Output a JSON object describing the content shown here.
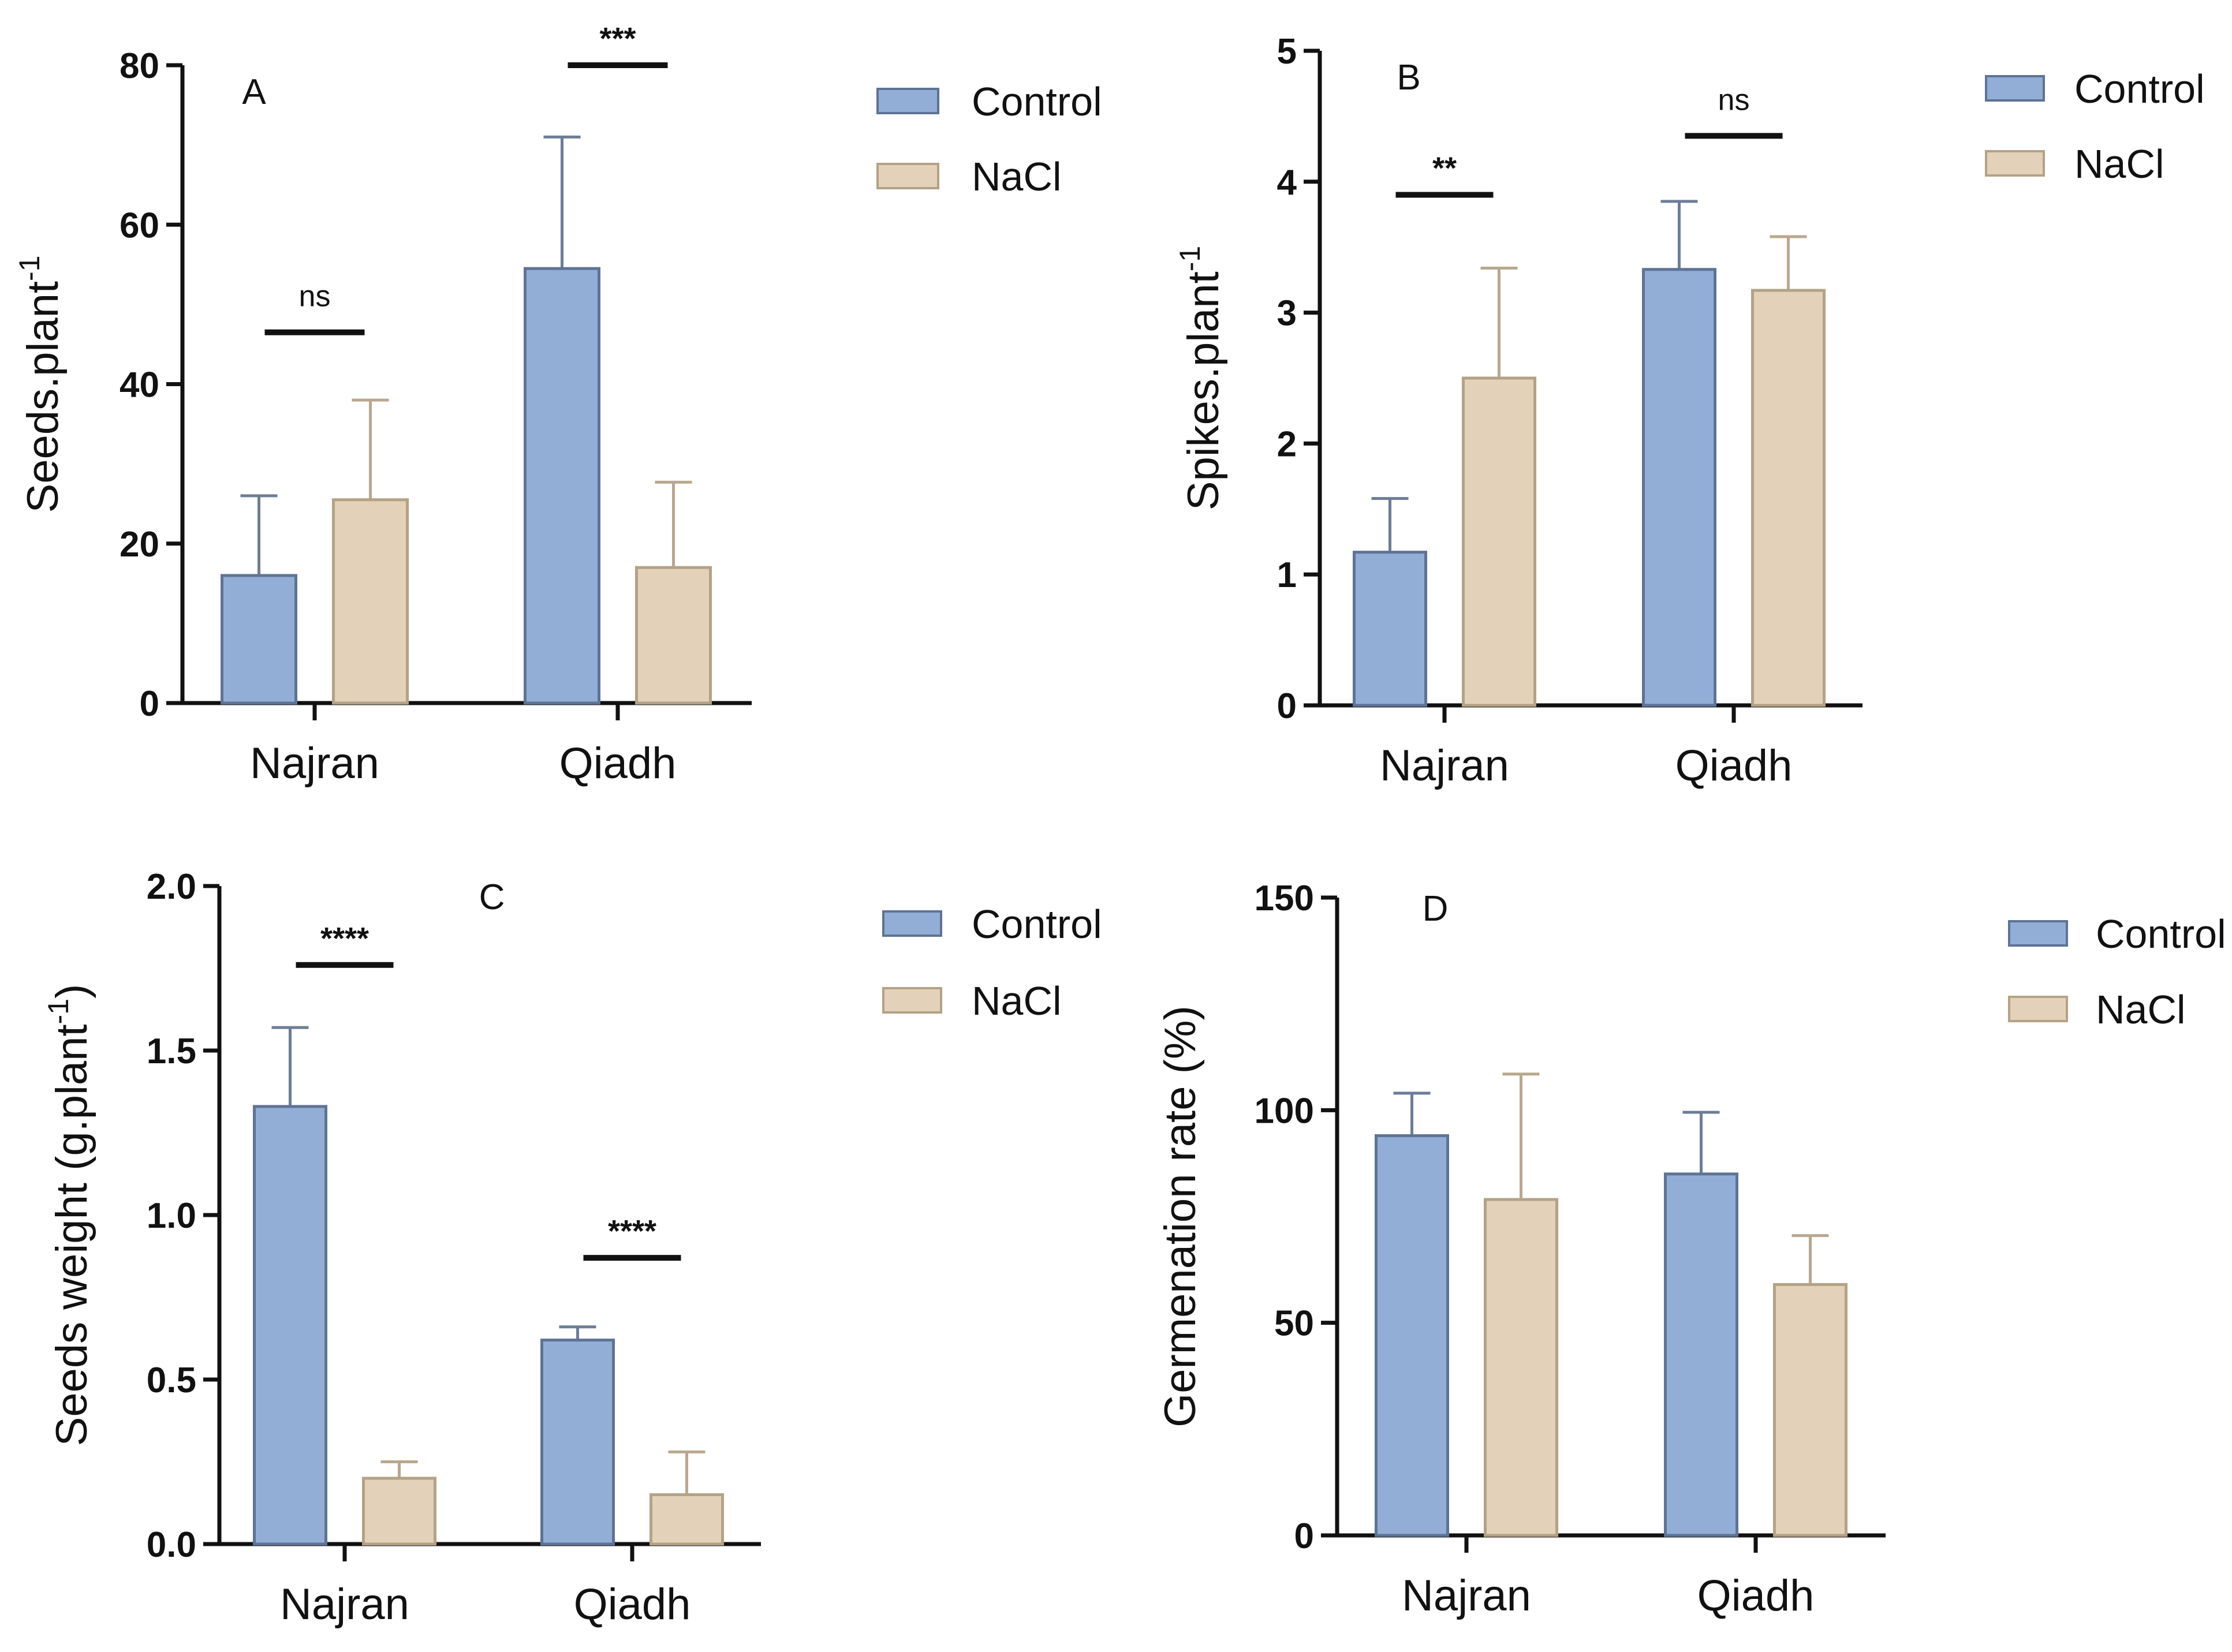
{
  "colors": {
    "control_fill": "#92aed6",
    "control_stroke": "#5e7395",
    "nacl_fill": "#e3d2b9",
    "nacl_stroke": "#b4a286",
    "error_control": "#6d7d96",
    "error_nacl": "#b8a88e",
    "axis": "#111111"
  },
  "chart_data": [
    {
      "type": "bar",
      "panel": "A",
      "categories": [
        "Najran",
        "Qiadh"
      ],
      "series": [
        {
          "name": "Control",
          "values": [
            16,
            54.5
          ],
          "error": [
            10,
            16.5
          ]
        },
        {
          "name": "NaCl",
          "values": [
            25.5,
            17
          ],
          "error": [
            12.5,
            10.7
          ]
        }
      ],
      "ylabel": "Seeds.plant",
      "ylabel_sup": "-1",
      "ylim": [
        0,
        80
      ],
      "yticks": [
        0,
        20,
        40,
        60,
        80
      ],
      "ytick_labels": [
        "0",
        "20",
        "40",
        "60",
        "80"
      ],
      "significance": [
        {
          "category": 0,
          "label": "ns",
          "y": 46.5
        },
        {
          "category": 1,
          "label": "***",
          "y": 80
        }
      ],
      "legend": [
        "Control",
        "NaCl"
      ],
      "legend_position": "right"
    },
    {
      "type": "bar",
      "panel": "B",
      "categories": [
        "Najran",
        "Qiadh"
      ],
      "series": [
        {
          "name": "Control",
          "values": [
            1.17,
            3.33
          ],
          "error": [
            0.41,
            0.52
          ]
        },
        {
          "name": "NaCl",
          "values": [
            2.5,
            3.17
          ],
          "error": [
            0.84,
            0.41
          ]
        }
      ],
      "ylabel": "Spikes.plant",
      "ylabel_sup": "-1",
      "ylim": [
        0,
        5
      ],
      "yticks": [
        0,
        1,
        2,
        3,
        4,
        5
      ],
      "ytick_labels": [
        "0",
        "1",
        "2",
        "3",
        "4",
        "5"
      ],
      "significance": [
        {
          "category": 0,
          "label": "**",
          "y": 3.9
        },
        {
          "category": 1,
          "label": "ns",
          "y": 4.35
        }
      ],
      "legend": [
        "Control",
        "NaCl"
      ],
      "legend_position": "right"
    },
    {
      "type": "bar",
      "panel": "C",
      "categories": [
        "Najran",
        "Qiadh"
      ],
      "series": [
        {
          "name": "Control",
          "values": [
            1.33,
            0.62
          ],
          "error": [
            0.24,
            0.04
          ]
        },
        {
          "name": "NaCl",
          "values": [
            0.2,
            0.15
          ],
          "error": [
            0.05,
            0.13
          ]
        }
      ],
      "ylabel": "Seeds weight (g.plant",
      "ylabel_sup": "-1",
      "ylabel_end": ")",
      "ylim": [
        0,
        2
      ],
      "yticks": [
        0,
        0.5,
        1,
        1.5,
        2
      ],
      "ytick_labels": [
        "0.0",
        "0.5",
        "1.0",
        "1.5",
        "2.0"
      ],
      "significance": [
        {
          "category": 0,
          "label": "****",
          "y": 1.76
        },
        {
          "category": 1,
          "label": "****",
          "y": 0.87
        }
      ],
      "legend": [
        "Control",
        "NaCl"
      ],
      "legend_position": "right"
    },
    {
      "type": "bar",
      "panel": "D",
      "categories": [
        "Najran",
        "Qiadh"
      ],
      "series": [
        {
          "name": "Control",
          "values": [
            94,
            85
          ],
          "error": [
            10,
            14.5
          ]
        },
        {
          "name": "NaCl",
          "values": [
            79,
            59
          ],
          "error": [
            29.5,
            11.5
          ]
        }
      ],
      "ylabel": "Germenation rate (%)",
      "ylim": [
        0,
        150
      ],
      "yticks": [
        0,
        50,
        100,
        150
      ],
      "ytick_labels": [
        "0",
        "50",
        "100",
        "150"
      ],
      "significance": [],
      "legend": [
        "Control",
        "NaCl"
      ],
      "legend_position": "right"
    }
  ]
}
